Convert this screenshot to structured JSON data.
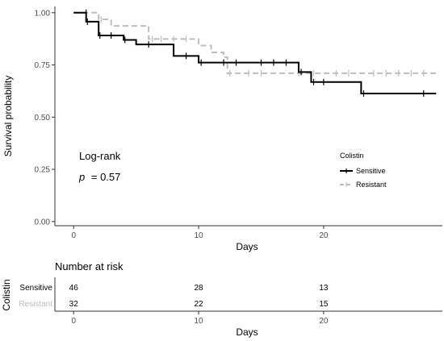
{
  "chart_data": {
    "type": "line",
    "subtype": "kaplan-meier-step",
    "xlabel": "Days",
    "ylabel": "Survival probability",
    "xlim": [
      -1.5,
      29.5
    ],
    "ylim": [
      -0.02,
      1.03
    ],
    "x_ticks": [
      0,
      10,
      20
    ],
    "x_tick_labels": [
      "0",
      "10",
      "20"
    ],
    "y_ticks": [
      0,
      0.25,
      0.5,
      0.75,
      1
    ],
    "y_tick_labels": [
      "0.00",
      "0.25",
      "0.50",
      "0.75",
      "1.00"
    ],
    "grid": false,
    "legend": {
      "title": "Colistin",
      "position": "right",
      "entries": [
        "Sensitive",
        "Resistant"
      ]
    },
    "series": [
      {
        "name": "Sensitive",
        "color": "#000000",
        "dashed": false,
        "steps": [
          [
            0,
            1.0
          ],
          [
            1,
            0.957
          ],
          [
            2,
            0.891
          ],
          [
            4,
            0.87
          ],
          [
            5,
            0.848
          ],
          [
            8,
            0.793
          ],
          [
            10,
            0.761
          ],
          [
            18,
            0.716
          ],
          [
            19,
            0.668
          ],
          [
            23,
            0.613
          ],
          [
            29,
            0.613
          ]
        ],
        "censor": [
          [
            1,
            1.0
          ],
          [
            1.1,
            0.957
          ],
          [
            2.1,
            0.891
          ],
          [
            3,
            0.891
          ],
          [
            4.1,
            0.87
          ],
          [
            6,
            0.848
          ],
          [
            9,
            0.793
          ],
          [
            10.2,
            0.761
          ],
          [
            12,
            0.761
          ],
          [
            13,
            0.761
          ],
          [
            15,
            0.761
          ],
          [
            16,
            0.761
          ],
          [
            17,
            0.761
          ],
          [
            18.2,
            0.716
          ],
          [
            19.2,
            0.668
          ],
          [
            20,
            0.668
          ],
          [
            23.2,
            0.613
          ],
          [
            28,
            0.613
          ]
        ]
      },
      {
        "name": "Resistant",
        "color": "#bdbdbd",
        "dashed": true,
        "steps": [
          [
            0,
            1.0
          ],
          [
            2,
            0.968
          ],
          [
            3,
            0.937
          ],
          [
            6,
            0.874
          ],
          [
            10,
            0.843
          ],
          [
            11,
            0.81
          ],
          [
            12,
            0.787
          ],
          [
            12.3,
            0.71
          ],
          [
            19,
            0.71
          ],
          [
            29,
            0.71
          ]
        ],
        "censor": [
          [
            2.2,
            0.968
          ],
          [
            6.3,
            0.874
          ],
          [
            7,
            0.874
          ],
          [
            8,
            0.874
          ],
          [
            9,
            0.874
          ],
          [
            12.5,
            0.71
          ],
          [
            14,
            0.71
          ],
          [
            15,
            0.71
          ],
          [
            18,
            0.71
          ],
          [
            19.2,
            0.71
          ],
          [
            21,
            0.71
          ],
          [
            22,
            0.71
          ],
          [
            24,
            0.71
          ],
          [
            25,
            0.71
          ],
          [
            26,
            0.71
          ],
          [
            27,
            0.71
          ],
          [
            28,
            0.71
          ]
        ]
      }
    ],
    "annotations": {
      "test": "Log-rank",
      "p_label": "p",
      "p_value": "= 0.57"
    },
    "risk_table": {
      "title": "Number at risk",
      "group_title": "Colistin",
      "xlabel": "Days",
      "times": [
        0,
        10,
        20
      ],
      "tick_labels": [
        "0",
        "10",
        "20"
      ],
      "rows": [
        {
          "label": "Sensitive",
          "color": "#000000",
          "values": [
            "46",
            "28",
            "13"
          ]
        },
        {
          "label": "Resistant",
          "color": "#bdbdbd",
          "values": [
            "32",
            "22",
            "15"
          ]
        }
      ]
    }
  }
}
